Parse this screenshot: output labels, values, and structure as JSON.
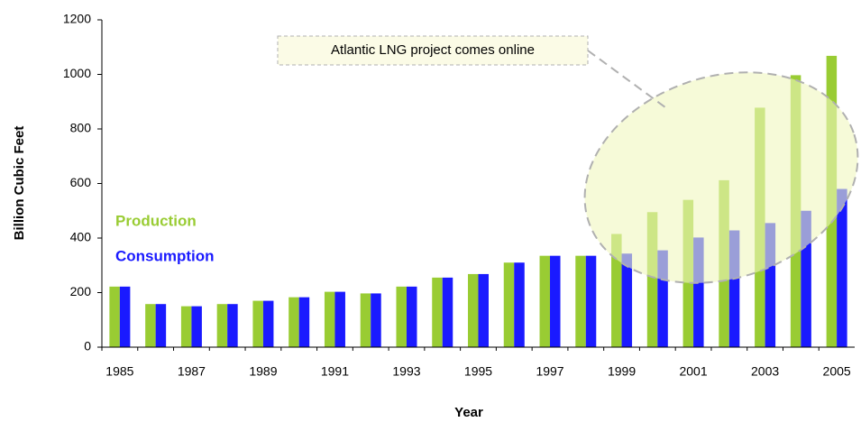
{
  "chart_data": {
    "type": "bar",
    "x_label": "Year",
    "y_label": "Billion Cubic Feet",
    "annotation": "Atlantic LNG project comes online",
    "categories": [
      "1985",
      null,
      "1987",
      null,
      "1989",
      null,
      "1991",
      null,
      "1993",
      null,
      "1995",
      null,
      "1997",
      null,
      "1999",
      null,
      "2001",
      null,
      "2003",
      null,
      "2005"
    ],
    "series": [
      {
        "name": "Production",
        "color": "#99cc33",
        "values": [
          222,
          158,
          150,
          158,
          170,
          183,
          203,
          197,
          222,
          255,
          268,
          310,
          335,
          335,
          415,
          495,
          540,
          612,
          878,
          997,
          1068
        ]
      },
      {
        "name": "Consumption",
        "color": "#1a1aff",
        "values": [
          222,
          158,
          150,
          158,
          170,
          183,
          203,
          197,
          222,
          255,
          268,
          310,
          335,
          335,
          343,
          355,
          402,
          428,
          455,
          500,
          580
        ]
      }
    ],
    "ylim": [
      0,
      1200
    ],
    "yticks": [
      0,
      200,
      400,
      600,
      800,
      1000,
      1200
    ]
  }
}
